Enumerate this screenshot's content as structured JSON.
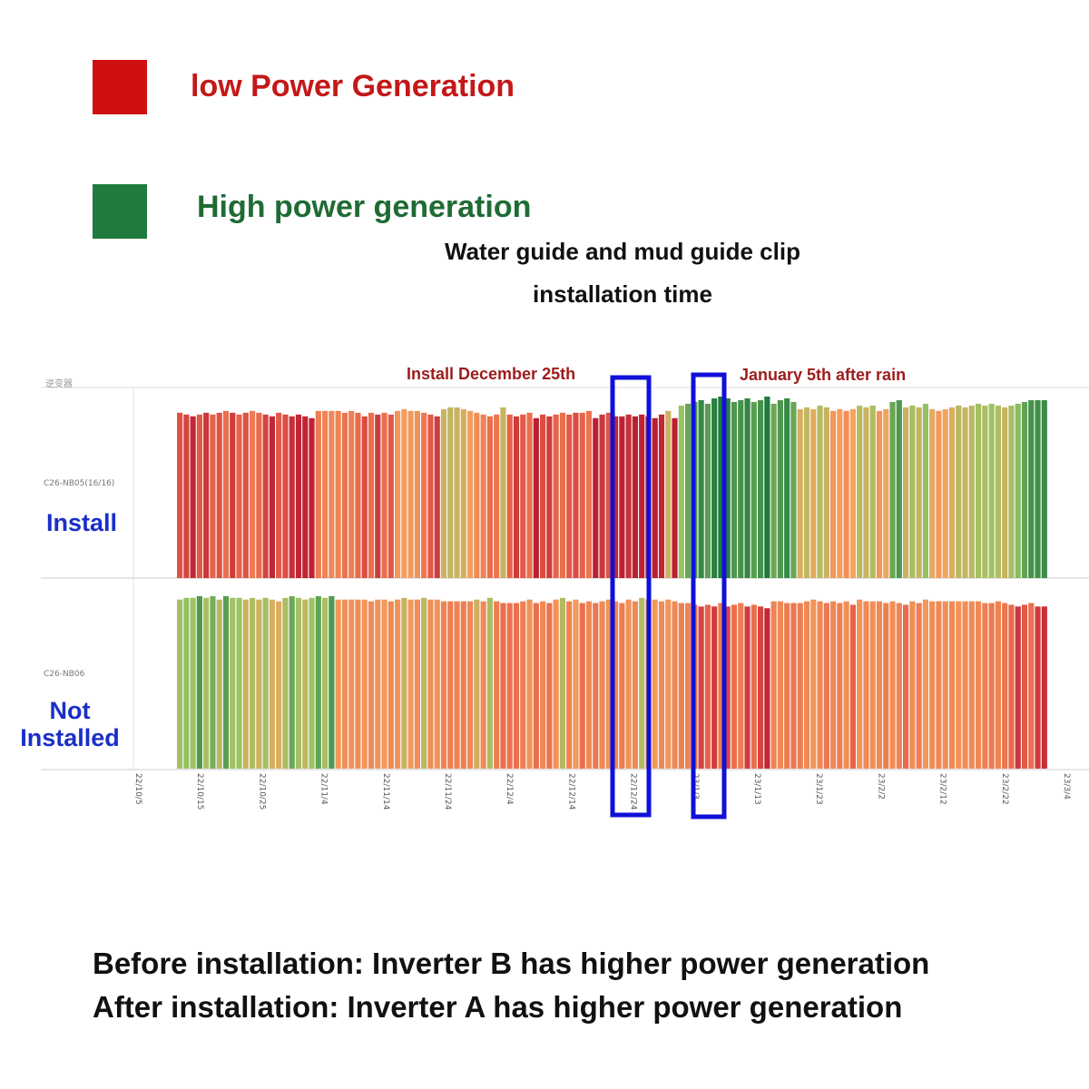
{
  "legend": {
    "low": {
      "label": "low Power Generation",
      "color": "#d01010",
      "text_color": "#c41818"
    },
    "high": {
      "label": "High power generation",
      "color": "#1e7a3e",
      "text_color": "#1f6b34"
    }
  },
  "title": {
    "line1": "Water guide and mud guide clip",
    "line2": "installation time"
  },
  "annotations": {
    "install_date": "Install December 25th",
    "after_rain": "January 5th after rain"
  },
  "rows": {
    "install": {
      "label": "Install",
      "inverter_id": "C26-NB05(16/16)"
    },
    "not_installed": {
      "label_line1": "Not",
      "label_line2": "Installed",
      "inverter_id": "C26-NB06"
    }
  },
  "axis_header": "逆变器",
  "footer": {
    "line1": "Before installation: Inverter B has higher power generation",
    "line2": "After installation: Inverter A has higher power generation"
  },
  "chart_data": {
    "type": "bar",
    "title": "Water guide and mud guide clip installation time",
    "x_tick_labels": [
      "22/10/5",
      "22/10/15",
      "22/10/25",
      "22/11/4",
      "22/11/14",
      "22/11/24",
      "22/12/4",
      "22/12/14",
      "22/12/24",
      "23/1/3",
      "23/1/13",
      "23/1/23",
      "23/2/2",
      "23/2/12",
      "23/2/22",
      "23/3/4"
    ],
    "color_scale": {
      "low": "#b81830",
      "mid": "#f4a35e",
      "high": "#1e7a3e"
    },
    "series": [
      {
        "name": "C26-NB05(16/16)",
        "row_label": "Install",
        "values": [
          0.92,
          0.91,
          0.9,
          0.91,
          0.92,
          0.91,
          0.92,
          0.93,
          0.92,
          0.91,
          0.92,
          0.93,
          0.92,
          0.91,
          0.9,
          0.92,
          0.91,
          0.9,
          0.91,
          0.9,
          0.89,
          0.93,
          0.93,
          0.93,
          0.93,
          0.92,
          0.93,
          0.92,
          0.9,
          0.92,
          0.91,
          0.92,
          0.91,
          0.93,
          0.94,
          0.93,
          0.93,
          0.92,
          0.91,
          0.9,
          0.94,
          0.95,
          0.95,
          0.94,
          0.93,
          0.92,
          0.91,
          0.9,
          0.91,
          0.95,
          0.91,
          0.9,
          0.91,
          0.92,
          0.89,
          0.91,
          0.9,
          0.91,
          0.92,
          0.91,
          0.92,
          0.92,
          0.93,
          0.89,
          0.91,
          0.92,
          0.9,
          0.9,
          0.91,
          0.9,
          0.91,
          0.9,
          0.89,
          0.91,
          0.93,
          0.89,
          0.96,
          0.97,
          0.98,
          0.99,
          0.97,
          1.0,
          1.01,
          1.0,
          0.98,
          0.99,
          1.0,
          0.98,
          0.99,
          1.01,
          0.97,
          0.99,
          1.0,
          0.98,
          0.94,
          0.95,
          0.94,
          0.96,
          0.95,
          0.93,
          0.94,
          0.93,
          0.94,
          0.96,
          0.95,
          0.96,
          0.93,
          0.94,
          0.98,
          0.99,
          0.95,
          0.96,
          0.95,
          0.97,
          0.94,
          0.93,
          0.94,
          0.95,
          0.96,
          0.95,
          0.96,
          0.97,
          0.96,
          0.97,
          0.96,
          0.95,
          0.96,
          0.97,
          0.98,
          0.99,
          0.99,
          0.99
        ],
        "levels": [
          0.2,
          0.15,
          0.05,
          0.22,
          0.1,
          0.25,
          0.2,
          0.3,
          0.12,
          0.25,
          0.2,
          0.35,
          0.28,
          0.15,
          0.05,
          0.22,
          0.18,
          0.08,
          0.05,
          0.04,
          0.03,
          0.35,
          0.38,
          0.4,
          0.38,
          0.32,
          0.36,
          0.28,
          0.18,
          0.3,
          0.12,
          0.3,
          0.22,
          0.45,
          0.48,
          0.46,
          0.44,
          0.33,
          0.22,
          0.12,
          0.62,
          0.64,
          0.62,
          0.58,
          0.48,
          0.42,
          0.38,
          0.3,
          0.33,
          0.62,
          0.25,
          0.12,
          0.22,
          0.3,
          0.02,
          0.18,
          0.12,
          0.25,
          0.3,
          0.22,
          0.18,
          0.25,
          0.32,
          0.02,
          0.1,
          0.2,
          0.05,
          0.03,
          0.08,
          0.02,
          0.04,
          0.02,
          0.02,
          0.05,
          0.6,
          0.02,
          0.75,
          0.85,
          0.9,
          0.95,
          0.88,
          0.98,
          1.0,
          0.98,
          0.9,
          0.92,
          0.96,
          0.88,
          0.92,
          1.0,
          0.84,
          0.9,
          0.95,
          0.85,
          0.58,
          0.65,
          0.55,
          0.68,
          0.62,
          0.45,
          0.48,
          0.42,
          0.5,
          0.66,
          0.62,
          0.68,
          0.45,
          0.52,
          0.85,
          0.9,
          0.62,
          0.7,
          0.64,
          0.76,
          0.55,
          0.46,
          0.5,
          0.58,
          0.66,
          0.62,
          0.66,
          0.72,
          0.68,
          0.74,
          0.68,
          0.62,
          0.7,
          0.78,
          0.86,
          0.92,
          0.93,
          0.94
        ]
      },
      {
        "name": "C26-NB06",
        "row_label": "Not Installed",
        "values": [
          0.98,
          0.99,
          0.99,
          1.0,
          0.99,
          1.0,
          0.98,
          1.0,
          0.99,
          0.99,
          0.98,
          0.99,
          0.98,
          0.99,
          0.98,
          0.97,
          0.99,
          1.0,
          0.99,
          0.98,
          0.99,
          1.0,
          0.99,
          1.0,
          0.98,
          0.98,
          0.98,
          0.98,
          0.98,
          0.97,
          0.98,
          0.98,
          0.97,
          0.98,
          0.99,
          0.98,
          0.98,
          0.99,
          0.98,
          0.98,
          0.97,
          0.97,
          0.97,
          0.97,
          0.97,
          0.98,
          0.97,
          0.99,
          0.97,
          0.96,
          0.96,
          0.96,
          0.97,
          0.98,
          0.96,
          0.97,
          0.96,
          0.98,
          0.99,
          0.97,
          0.98,
          0.96,
          0.97,
          0.96,
          0.97,
          0.98,
          0.97,
          0.96,
          0.98,
          0.97,
          0.99,
          0.98,
          0.98,
          0.97,
          0.98,
          0.97,
          0.96,
          0.96,
          0.95,
          0.94,
          0.95,
          0.94,
          0.96,
          0.94,
          0.95,
          0.96,
          0.94,
          0.95,
          0.94,
          0.93,
          0.97,
          0.97,
          0.96,
          0.96,
          0.96,
          0.97,
          0.98,
          0.97,
          0.96,
          0.97,
          0.96,
          0.97,
          0.95,
          0.98,
          0.97,
          0.97,
          0.97,
          0.96,
          0.97,
          0.96,
          0.95,
          0.97,
          0.96,
          0.98,
          0.97,
          0.97,
          0.97,
          0.97,
          0.97,
          0.97,
          0.97,
          0.97,
          0.96,
          0.96,
          0.97,
          0.96,
          0.95,
          0.94,
          0.95,
          0.96,
          0.94,
          0.94
        ],
        "levels": [
          0.72,
          0.76,
          0.74,
          0.9,
          0.7,
          0.82,
          0.66,
          0.88,
          0.72,
          0.74,
          0.62,
          0.7,
          0.6,
          0.72,
          0.58,
          0.56,
          0.7,
          0.84,
          0.72,
          0.64,
          0.74,
          0.86,
          0.7,
          0.9,
          0.45,
          0.42,
          0.44,
          0.42,
          0.45,
          0.4,
          0.44,
          0.46,
          0.4,
          0.44,
          0.62,
          0.46,
          0.42,
          0.66,
          0.42,
          0.44,
          0.38,
          0.36,
          0.38,
          0.36,
          0.4,
          0.6,
          0.4,
          0.7,
          0.36,
          0.3,
          0.32,
          0.3,
          0.36,
          0.44,
          0.3,
          0.4,
          0.32,
          0.44,
          0.68,
          0.38,
          0.46,
          0.3,
          0.4,
          0.33,
          0.4,
          0.44,
          0.4,
          0.35,
          0.44,
          0.4,
          0.66,
          0.42,
          0.46,
          0.4,
          0.45,
          0.4,
          0.36,
          0.38,
          0.3,
          0.15,
          0.25,
          0.12,
          0.36,
          0.15,
          0.3,
          0.35,
          0.12,
          0.3,
          0.15,
          0.05,
          0.38,
          0.4,
          0.35,
          0.33,
          0.36,
          0.4,
          0.45,
          0.4,
          0.33,
          0.4,
          0.36,
          0.42,
          0.25,
          0.44,
          0.4,
          0.42,
          0.4,
          0.36,
          0.42,
          0.38,
          0.28,
          0.42,
          0.36,
          0.45,
          0.42,
          0.4,
          0.42,
          0.4,
          0.44,
          0.42,
          0.4,
          0.4,
          0.36,
          0.34,
          0.38,
          0.33,
          0.28,
          0.1,
          0.22,
          0.3,
          0.12,
          0.08
        ]
      }
    ]
  }
}
